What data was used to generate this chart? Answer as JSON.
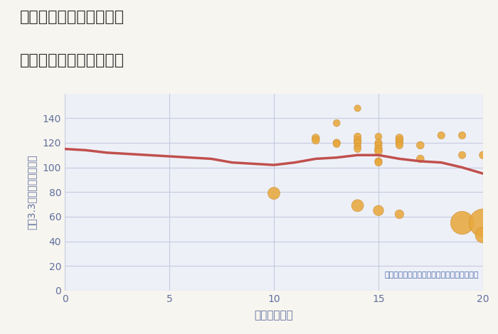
{
  "title_line1": "兵庫県宝塚市山本丸橋の",
  "title_line2": "駅距離別中古戸建て価格",
  "xlabel": "駅距離（分）",
  "ylabel": "坪（3.3㎡）単価（万円）",
  "annotation": "円の大きさは、取引のあった物件面積を示す",
  "bg_color": "#f7f5ef",
  "plot_bg_color": "#eef0f8",
  "grid_color": "#c5cade",
  "line_color": "#c0504d",
  "scatter_color": "#e8a93e",
  "scatter_edge_color": "#c8882a",
  "tick_color": "#6070a0",
  "label_color": "#6070a0",
  "title_color": "#333333",
  "annotation_color": "#4a6aaa",
  "xlim": [
    0,
    20
  ],
  "ylim": [
    0,
    160
  ],
  "xticks": [
    0,
    5,
    10,
    15,
    20
  ],
  "yticks": [
    0,
    20,
    40,
    60,
    80,
    100,
    120,
    140
  ],
  "line_x": [
    0,
    1,
    2,
    3,
    4,
    5,
    6,
    7,
    8,
    9,
    10,
    11,
    12,
    13,
    14,
    15,
    16,
    17,
    18,
    19,
    20
  ],
  "line_y": [
    115,
    114,
    112,
    111,
    110,
    109,
    108,
    107,
    104,
    103,
    102,
    104,
    107,
    108,
    110,
    110,
    107,
    105,
    104,
    100,
    95
  ],
  "scatter_x": [
    10,
    12,
    12,
    13,
    13,
    13,
    14,
    14,
    14,
    14,
    14,
    14,
    14,
    15,
    15,
    15,
    15,
    15,
    15,
    15,
    15,
    16,
    16,
    16,
    16,
    16,
    17,
    17,
    18,
    19,
    19,
    19,
    20,
    20,
    20
  ],
  "scatter_y": [
    79,
    124,
    122,
    136,
    120,
    119,
    148,
    125,
    122,
    120,
    117,
    115,
    69,
    125,
    120,
    118,
    115,
    113,
    105,
    104,
    65,
    124,
    122,
    120,
    118,
    62,
    118,
    107,
    126,
    126,
    110,
    55,
    110,
    55,
    45
  ],
  "scatter_size": [
    150,
    60,
    60,
    50,
    55,
    50,
    45,
    55,
    60,
    55,
    50,
    50,
    150,
    50,
    55,
    55,
    60,
    60,
    55,
    55,
    110,
    60,
    60,
    55,
    55,
    80,
    60,
    60,
    55,
    55,
    55,
    550,
    60,
    800,
    250
  ]
}
